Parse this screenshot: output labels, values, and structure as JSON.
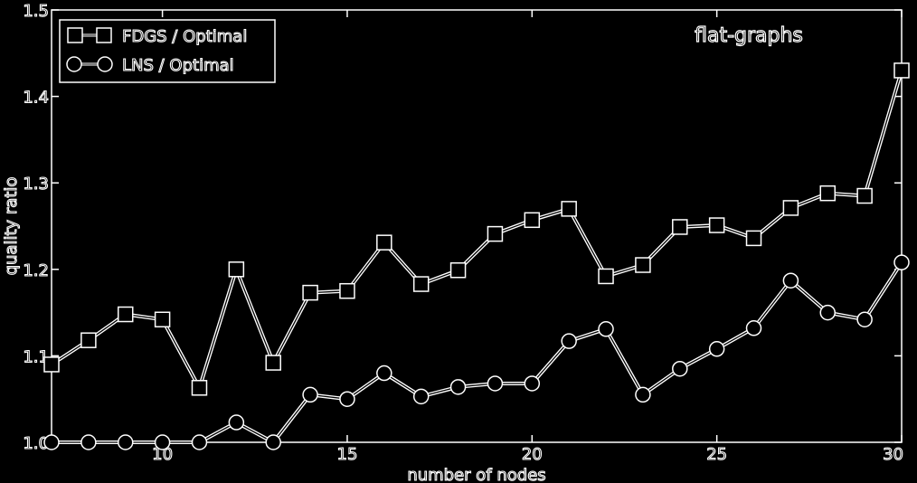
{
  "chart_data": {
    "type": "line",
    "title": "",
    "annotation": "flat-graphs",
    "xlabel": "number of nodes",
    "ylabel": "quality ratio",
    "xlim": [
      7,
      30
    ],
    "ylim": [
      1.0,
      1.5
    ],
    "xticks": [
      10,
      15,
      20,
      25,
      30
    ],
    "yticks": [
      1.0,
      1.1,
      1.2,
      1.3,
      1.4,
      1.5
    ],
    "xtick_labels": [
      "10",
      "15",
      "20",
      "25",
      "30"
    ],
    "ytick_labels": [
      "1.0",
      "1.1",
      "1.2",
      "1.3",
      "1.4",
      "1.5"
    ],
    "grid": false,
    "legend_position": "top-left",
    "x": [
      7,
      8,
      9,
      10,
      11,
      12,
      13,
      14,
      15,
      16,
      17,
      18,
      19,
      20,
      21,
      22,
      23,
      24,
      25,
      26,
      27,
      28,
      29,
      30
    ],
    "series": [
      {
        "name": "FDGS / Optimal",
        "marker": "square",
        "values": [
          1.09,
          1.118,
          1.148,
          1.142,
          1.063,
          1.2,
          1.092,
          1.173,
          1.175,
          1.231,
          1.183,
          1.199,
          1.241,
          1.257,
          1.27,
          1.192,
          1.205,
          1.249,
          1.251,
          1.236,
          1.271,
          1.288,
          1.285,
          1.43
        ]
      },
      {
        "name": "LNS / Optimal",
        "marker": "circle",
        "values": [
          1.0,
          1.0,
          1.0,
          1.0,
          1.0,
          1.023,
          1.0,
          1.055,
          1.05,
          1.08,
          1.053,
          1.064,
          1.068,
          1.068,
          1.117,
          1.131,
          1.055,
          1.085,
          1.108,
          1.132,
          1.187,
          1.15,
          1.142,
          1.208
        ]
      }
    ]
  }
}
